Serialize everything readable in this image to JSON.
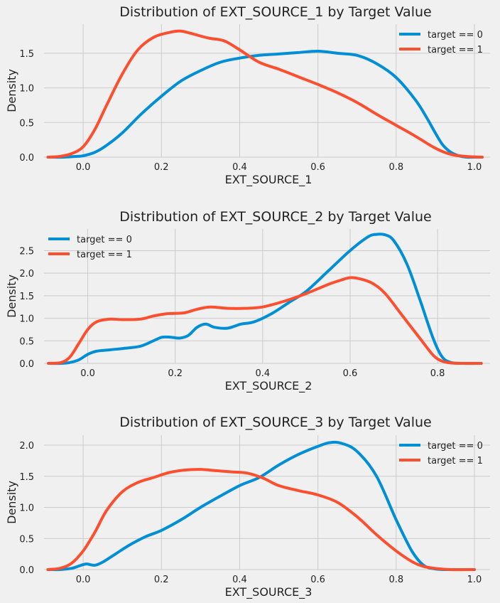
{
  "chart_data": [
    {
      "type": "line",
      "title": "Distribution of EXT_SOURCE_1 by Target Value",
      "xlabel": "EXT_SOURCE_1",
      "ylabel": "Density",
      "xlim": [
        -0.1,
        1.04
      ],
      "ylim": [
        0,
        1.92
      ],
      "xticks": [
        0.0,
        0.2,
        0.4,
        0.6,
        0.8,
        1.0
      ],
      "xtick_labels": [
        "0.0",
        "0.2",
        "0.4",
        "0.6",
        "0.8",
        "1.0"
      ],
      "yticks": [
        0.0,
        0.5,
        1.0,
        1.5
      ],
      "ytick_labels": [
        "0.0",
        "0.5",
        "1.0",
        "1.5"
      ],
      "grid": true,
      "legend_position": "top-right",
      "series": [
        {
          "name": "target == 0",
          "color": "#008fd5",
          "x": [
            -0.09,
            -0.05,
            -0.02,
            0.0,
            0.03,
            0.06,
            0.1,
            0.15,
            0.2,
            0.25,
            0.3,
            0.35,
            0.4,
            0.45,
            0.5,
            0.55,
            0.6,
            0.65,
            0.7,
            0.75,
            0.8,
            0.85,
            0.88,
            0.9,
            0.92,
            0.94,
            0.96,
            0.98,
            1.0,
            1.02
          ],
          "y": [
            0.0,
            0.0,
            0.01,
            0.02,
            0.07,
            0.17,
            0.35,
            0.63,
            0.88,
            1.1,
            1.25,
            1.37,
            1.43,
            1.47,
            1.49,
            1.51,
            1.53,
            1.5,
            1.47,
            1.35,
            1.15,
            0.82,
            0.55,
            0.35,
            0.17,
            0.07,
            0.02,
            0.0,
            0.0,
            0.0
          ]
        },
        {
          "name": "target == 1",
          "color": "#fc4f30",
          "x": [
            -0.09,
            -0.06,
            -0.03,
            0.0,
            0.03,
            0.06,
            0.1,
            0.14,
            0.18,
            0.22,
            0.25,
            0.28,
            0.32,
            0.36,
            0.4,
            0.45,
            0.5,
            0.55,
            0.6,
            0.65,
            0.7,
            0.75,
            0.8,
            0.85,
            0.9,
            0.94,
            0.98,
            1.02
          ],
          "y": [
            0.0,
            0.01,
            0.05,
            0.15,
            0.4,
            0.75,
            1.2,
            1.55,
            1.73,
            1.8,
            1.82,
            1.78,
            1.72,
            1.68,
            1.55,
            1.37,
            1.27,
            1.16,
            1.05,
            0.93,
            0.79,
            0.62,
            0.46,
            0.3,
            0.13,
            0.04,
            0.01,
            0.0
          ]
        }
      ]
    },
    {
      "type": "line",
      "title": "Distribution of EXT_SOURCE_2 by Target Value",
      "xlabel": "EXT_SOURCE_2",
      "ylabel": "Density",
      "xlim": [
        -0.1,
        0.92
      ],
      "ylim": [
        0,
        2.98
      ],
      "xticks": [
        0.0,
        0.2,
        0.4,
        0.6,
        0.8
      ],
      "xtick_labels": [
        "0.0",
        "0.2",
        "0.4",
        "0.6",
        "0.8"
      ],
      "yticks": [
        0.0,
        0.5,
        1.0,
        1.5,
        2.0,
        2.5
      ],
      "ytick_labels": [
        "0.0",
        "0.5",
        "1.0",
        "1.5",
        "2.0",
        "2.5"
      ],
      "grid": true,
      "legend_position": "top-left",
      "series": [
        {
          "name": "target == 0",
          "color": "#008fd5",
          "x": [
            -0.09,
            -0.06,
            -0.04,
            -0.02,
            0.0,
            0.02,
            0.05,
            0.08,
            0.12,
            0.15,
            0.17,
            0.19,
            0.21,
            0.23,
            0.25,
            0.27,
            0.29,
            0.32,
            0.35,
            0.38,
            0.42,
            0.46,
            0.5,
            0.55,
            0.6,
            0.64,
            0.66,
            0.68,
            0.7,
            0.73,
            0.76,
            0.79,
            0.81,
            0.83,
            0.86,
            0.9
          ],
          "y": [
            0.0,
            0.0,
            0.02,
            0.08,
            0.2,
            0.27,
            0.3,
            0.33,
            0.38,
            0.5,
            0.58,
            0.58,
            0.56,
            0.62,
            0.8,
            0.87,
            0.8,
            0.78,
            0.87,
            0.92,
            1.1,
            1.35,
            1.6,
            2.05,
            2.5,
            2.8,
            2.86,
            2.85,
            2.72,
            2.2,
            1.4,
            0.55,
            0.15,
            0.02,
            0.0,
            0.0
          ]
        },
        {
          "name": "target == 1",
          "color": "#fc4f30",
          "x": [
            -0.09,
            -0.06,
            -0.04,
            -0.02,
            0.0,
            0.02,
            0.05,
            0.08,
            0.12,
            0.15,
            0.18,
            0.22,
            0.25,
            0.28,
            0.32,
            0.36,
            0.4,
            0.45,
            0.5,
            0.55,
            0.58,
            0.6,
            0.62,
            0.65,
            0.68,
            0.72,
            0.76,
            0.79,
            0.81,
            0.83,
            0.86,
            0.9
          ],
          "y": [
            0.0,
            0.02,
            0.15,
            0.45,
            0.75,
            0.92,
            0.98,
            0.97,
            0.98,
            1.05,
            1.1,
            1.12,
            1.2,
            1.25,
            1.22,
            1.22,
            1.25,
            1.38,
            1.55,
            1.75,
            1.85,
            1.9,
            1.88,
            1.78,
            1.55,
            1.05,
            0.55,
            0.18,
            0.05,
            0.01,
            0.0,
            0.0
          ]
        }
      ]
    },
    {
      "type": "line",
      "title": "Distribution of EXT_SOURCE_3 by Target Value",
      "xlabel": "EXT_SOURCE_3",
      "ylabel": "Density",
      "xlim": [
        -0.1,
        1.04
      ],
      "ylim": [
        0,
        2.16
      ],
      "xticks": [
        0.0,
        0.2,
        0.4,
        0.6,
        0.8,
        1.0
      ],
      "xtick_labels": [
        "0.0",
        "0.2",
        "0.4",
        "0.6",
        "0.8",
        "1.0"
      ],
      "yticks": [
        0.0,
        0.5,
        1.0,
        1.5,
        2.0
      ],
      "ytick_labels": [
        "0.0",
        "0.5",
        "1.0",
        "1.5",
        "2.0"
      ],
      "grid": true,
      "legend_position": "top-right",
      "series": [
        {
          "name": "target == 0",
          "color": "#008fd5",
          "x": [
            -0.09,
            -0.06,
            -0.03,
            -0.01,
            0.0,
            0.01,
            0.03,
            0.05,
            0.08,
            0.12,
            0.16,
            0.2,
            0.25,
            0.3,
            0.35,
            0.4,
            0.45,
            0.5,
            0.55,
            0.6,
            0.63,
            0.66,
            0.7,
            0.75,
            0.8,
            0.84,
            0.87,
            0.9,
            0.94,
            1.0
          ],
          "y": [
            0.0,
            0.0,
            0.02,
            0.06,
            0.08,
            0.09,
            0.07,
            0.12,
            0.24,
            0.4,
            0.53,
            0.63,
            0.8,
            1.0,
            1.18,
            1.35,
            1.48,
            1.68,
            1.85,
            1.98,
            2.04,
            2.03,
            1.9,
            1.5,
            0.8,
            0.3,
            0.07,
            0.01,
            0.0,
            0.0
          ]
        },
        {
          "name": "target == 1",
          "color": "#fc4f30",
          "x": [
            -0.09,
            -0.06,
            -0.03,
            0.0,
            0.03,
            0.06,
            0.1,
            0.14,
            0.18,
            0.22,
            0.26,
            0.3,
            0.34,
            0.38,
            0.42,
            0.46,
            0.5,
            0.55,
            0.6,
            0.65,
            0.7,
            0.75,
            0.8,
            0.84,
            0.87,
            0.9,
            0.94,
            1.0
          ],
          "y": [
            0.0,
            0.02,
            0.1,
            0.3,
            0.6,
            0.95,
            1.25,
            1.4,
            1.48,
            1.56,
            1.6,
            1.61,
            1.59,
            1.57,
            1.55,
            1.47,
            1.35,
            1.27,
            1.2,
            1.08,
            0.85,
            0.56,
            0.3,
            0.13,
            0.05,
            0.02,
            0.0,
            0.0
          ]
        }
      ]
    }
  ]
}
